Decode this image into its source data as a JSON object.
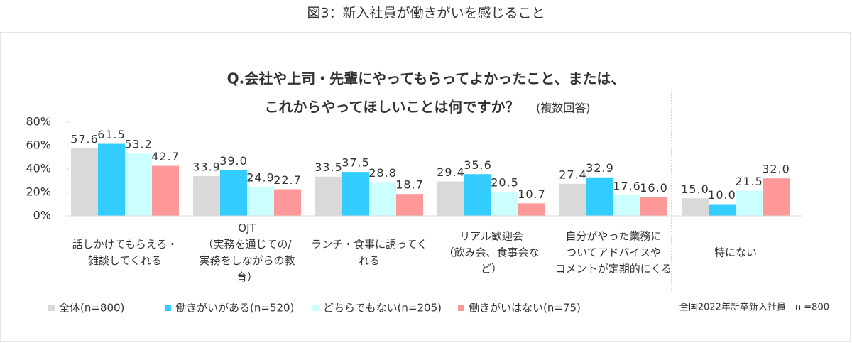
{
  "chart_data": {
    "type": "bar",
    "header": "図3：新入社員が働きがいを感じること",
    "title": [
      "Q.会社や上司・先輩にやってもらってよかったこと、または、",
      "これからやってほしいことは何ですか？"
    ],
    "subtitle": "(複数回答)",
    "note": "全国2022年新卒新入社員　n =800",
    "categories": [
      [
        "話しかけてもらえる・",
        "雑談してくれる"
      ],
      [
        "OJT",
        "（実務を通じての/",
        "実務をしながらの教",
        "育）"
      ],
      [
        "ランチ・食事に誘ってく",
        "れる"
      ],
      [
        "リアル歓迎会",
        "（飲み会、食事会な",
        "ど）"
      ],
      [
        "自分がやった業務に",
        "ついてアドバイスや",
        "コメントが定期的にくる"
      ],
      [
        "特にない"
      ]
    ],
    "series": [
      {
        "name": "全体(n=800)",
        "color": "#d9d9d9",
        "label_color": "#595959",
        "values": [
          57.6,
          33.9,
          33.5,
          29.4,
          27.4,
          15.0
        ],
        "value_labels": [
          "57.6",
          "33.9",
          "33.5",
          "29.4",
          "27.4",
          "15.0"
        ]
      },
      {
        "name": "働きがいがある(n=520)",
        "color": "#33ccff",
        "label_color": "#1f97d4",
        "values": [
          61.5,
          39.0,
          37.5,
          35.6,
          32.9,
          10.0
        ],
        "value_labels": [
          "61.5",
          "39.0",
          "37.5",
          "35.6",
          "32.9",
          "10.0"
        ]
      },
      {
        "name": "どちらでもない(n=205)",
        "color": "#ccffff",
        "label_color": "#3aaee0",
        "values": [
          53.2,
          24.9,
          28.8,
          20.5,
          17.6,
          21.5
        ],
        "value_labels": [
          "53.2",
          "24.9",
          "28.8",
          "20.5",
          "17.6",
          "21.5"
        ]
      },
      {
        "name": "働きがいはない(n=75)",
        "color": "#ff9999",
        "label_color": "#e8383d",
        "values": [
          42.7,
          22.7,
          18.7,
          10.7,
          16.0,
          32.0
        ],
        "value_labels": [
          "42.7",
          "22.7",
          "18.7",
          "10.7",
          "16.0",
          "32.0"
        ]
      }
    ],
    "ylim": [
      0,
      80
    ],
    "yticks": [
      {
        "value": 0,
        "label": "0%"
      },
      {
        "value": 20,
        "label": "20%"
      },
      {
        "value": 40,
        "label": "40%"
      },
      {
        "value": 60,
        "label": "60%"
      },
      {
        "value": 80,
        "label": "80%"
      }
    ],
    "grid": false
  }
}
